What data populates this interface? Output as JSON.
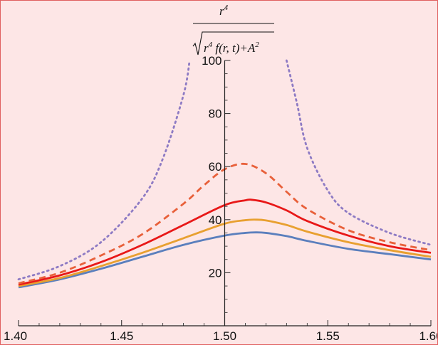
{
  "chart_data": {
    "type": "line",
    "ylabel": {
      "numerator": "r",
      "numerator_exp": "4",
      "denominator_r": "r",
      "denominator_exp": "4",
      "denominator_mid": " f(r, t)+",
      "denominator_A": "A",
      "denominator_A_exp": "2"
    },
    "xlim": [
      1.4,
      1.6
    ],
    "ylim": [
      0,
      100
    ],
    "xticks": [
      1.4,
      1.45,
      1.5,
      1.55,
      1.6
    ],
    "xtick_labels": [
      "1.40",
      "1.45",
      "1.50",
      "1.55",
      "1.60"
    ],
    "yticks": [
      20,
      40,
      60,
      80,
      100
    ],
    "ytick_labels": [
      "20",
      "40",
      "60",
      "80",
      "100"
    ],
    "grid": false,
    "series": [
      {
        "color": "#5b7fbd",
        "style": "solid",
        "x": [
          1.4,
          1.42,
          1.44,
          1.46,
          1.48,
          1.5,
          1.51,
          1.515,
          1.52,
          1.53,
          1.54,
          1.56,
          1.58,
          1.6
        ],
        "y": [
          14.5,
          17.5,
          21.5,
          26.0,
          30.5,
          34.0,
          35.0,
          35.2,
          35.0,
          33.8,
          32.0,
          29.0,
          27.0,
          25.0
        ]
      },
      {
        "color": "#e8a030",
        "style": "solid",
        "x": [
          1.4,
          1.42,
          1.44,
          1.46,
          1.48,
          1.5,
          1.51,
          1.515,
          1.52,
          1.53,
          1.54,
          1.56,
          1.58,
          1.6
        ],
        "y": [
          15.0,
          18.0,
          22.5,
          27.5,
          33.0,
          38.5,
          39.8,
          40.0,
          39.7,
          38.0,
          35.5,
          31.5,
          28.5,
          26.0
        ]
      },
      {
        "color": "#e81818",
        "style": "solid",
        "x": [
          1.4,
          1.42,
          1.44,
          1.46,
          1.48,
          1.5,
          1.51,
          1.513,
          1.52,
          1.53,
          1.54,
          1.56,
          1.58,
          1.6
        ],
        "y": [
          15.5,
          19.0,
          24.0,
          30.5,
          38.0,
          45.5,
          47.3,
          47.5,
          46.5,
          43.5,
          39.5,
          34.0,
          30.0,
          27.5
        ]
      },
      {
        "color": "#e8603a",
        "style": "dashed",
        "x": [
          1.4,
          1.42,
          1.44,
          1.46,
          1.48,
          1.49,
          1.5,
          1.51,
          1.52,
          1.53,
          1.54,
          1.56,
          1.58,
          1.6
        ],
        "y": [
          16.0,
          20.0,
          26.5,
          34.5,
          46.0,
          53.0,
          59.0,
          61.0,
          57.5,
          50.5,
          44.0,
          36.0,
          31.5,
          28.5
        ]
      },
      {
        "color": "#8e7bc4",
        "style": "dotted",
        "x": [
          1.4,
          1.42,
          1.44,
          1.46,
          1.47,
          1.48,
          1.483,
          null,
          1.53,
          1.535,
          1.54,
          1.55,
          1.56,
          1.58,
          1.6
        ],
        "y": [
          17.5,
          22.5,
          31.5,
          48.0,
          63.0,
          87.0,
          100,
          null,
          100,
          84.0,
          67.0,
          51.0,
          42.5,
          35.0,
          30.5
        ]
      }
    ]
  }
}
